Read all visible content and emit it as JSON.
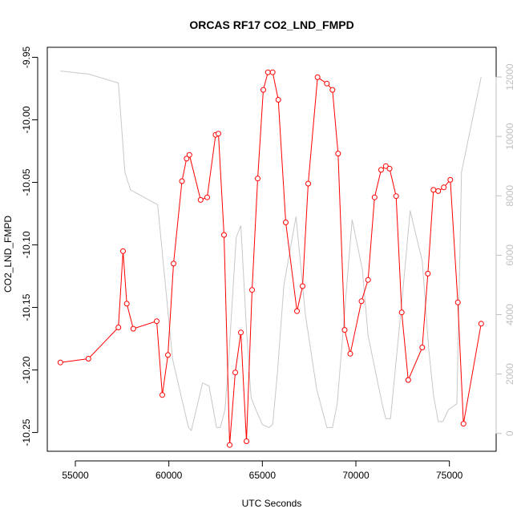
{
  "chart_data": {
    "type": "line",
    "title": "ORCAS RF17 CO2_LND_FMPD",
    "xlabel": "UTC Seconds",
    "ylabel": "CO2_LND_FMPD",
    "xlim": [
      53500,
      77500
    ],
    "ylim": [
      -10.265,
      -9.942
    ],
    "ylim_right": [
      -600,
      13000
    ],
    "x_ticks": [
      55000,
      60000,
      65000,
      70000,
      75000
    ],
    "y_ticks": [
      -10.25,
      -10.2,
      -10.15,
      -10.1,
      -10.05,
      -10.0,
      -9.95
    ],
    "y_tick_labels": [
      "-10.25",
      "-10.20",
      "-10.15",
      "-10.10",
      "-10.05",
      "-10.00",
      "-9.95"
    ],
    "y2_ticks": [
      0,
      2000,
      4000,
      6000,
      8000,
      10000,
      12000
    ],
    "y2_tick_labels": [
      "0",
      "2000",
      "4000",
      "6000",
      "8000",
      "10000",
      "12000"
    ],
    "colors": {
      "series": "#ff0000",
      "altitude": "#c8c8c8",
      "axis": "#000000",
      "right_axis": "#c0c0c0"
    },
    "series": [
      {
        "x": [
          54200,
          55700,
          57300,
          57550,
          57750,
          58100,
          59350,
          59650,
          59950,
          60250,
          60700,
          60950,
          61100,
          61700,
          62050,
          62500,
          62650,
          62950,
          63250,
          63550,
          63850,
          64150,
          64450,
          64750,
          65050,
          65300,
          65550,
          65850,
          66250,
          66850,
          67150,
          67450,
          67950,
          68450,
          68750,
          69050,
          69400,
          69700,
          70300,
          70650,
          71000,
          71350,
          71600,
          71800,
          72150,
          72450,
          72800,
          73550,
          73850,
          74150,
          74400,
          74700,
          75050,
          75450,
          75750,
          76700
        ],
        "values": [
          -10.194,
          -10.191,
          -10.166,
          -10.105,
          -10.147,
          -10.167,
          -10.161,
          -10.22,
          -10.188,
          -10.115,
          -10.049,
          -10.031,
          -10.028,
          -10.064,
          -10.062,
          -10.012,
          -10.011,
          -10.092,
          -10.26,
          -10.202,
          -10.17,
          -10.257,
          -10.136,
          -10.047,
          -9.976,
          -9.962,
          -9.962,
          -9.984,
          -10.082,
          -10.153,
          -10.133,
          -10.051,
          -9.966,
          -9.971,
          -9.976,
          -10.027,
          -10.168,
          -10.187,
          -10.145,
          -10.128,
          -10.062,
          -10.04,
          -10.037,
          -10.039,
          -10.061,
          -10.154,
          -10.208,
          -10.182,
          -10.123,
          -10.056,
          -10.057,
          -10.054,
          -10.048,
          -10.146,
          -10.243,
          -10.163
        ]
      },
      {
        "x": [
          54200,
          55700,
          57300,
          57650,
          57950,
          59400,
          60200,
          60750,
          61050,
          61200,
          61800,
          62150,
          62550,
          62750,
          63000,
          63200,
          63600,
          63850,
          64150,
          64400,
          64650,
          65000,
          65350,
          65550,
          65800,
          66150,
          66800,
          67300,
          67900,
          68450,
          68750,
          69000,
          69800,
          70350,
          70650,
          71400,
          71600,
          71850,
          72500,
          72900,
          73550,
          73900,
          74150,
          74400,
          74650,
          74950,
          75400,
          75650,
          76700
        ],
        "values": [
          12200,
          12100,
          11800,
          8800,
          8200,
          7700,
          2500,
          1000,
          200,
          100,
          1700,
          1600,
          200,
          200,
          800,
          2500,
          6600,
          7000,
          3500,
          1200,
          800,
          300,
          200,
          300,
          2000,
          5000,
          7300,
          4000,
          1500,
          200,
          200,
          1000,
          7200,
          5500,
          3300,
          1000,
          500,
          500,
          4700,
          7500,
          5800,
          2800,
          1300,
          400,
          400,
          800,
          1000,
          8800,
          12000
        ]
      }
    ]
  }
}
